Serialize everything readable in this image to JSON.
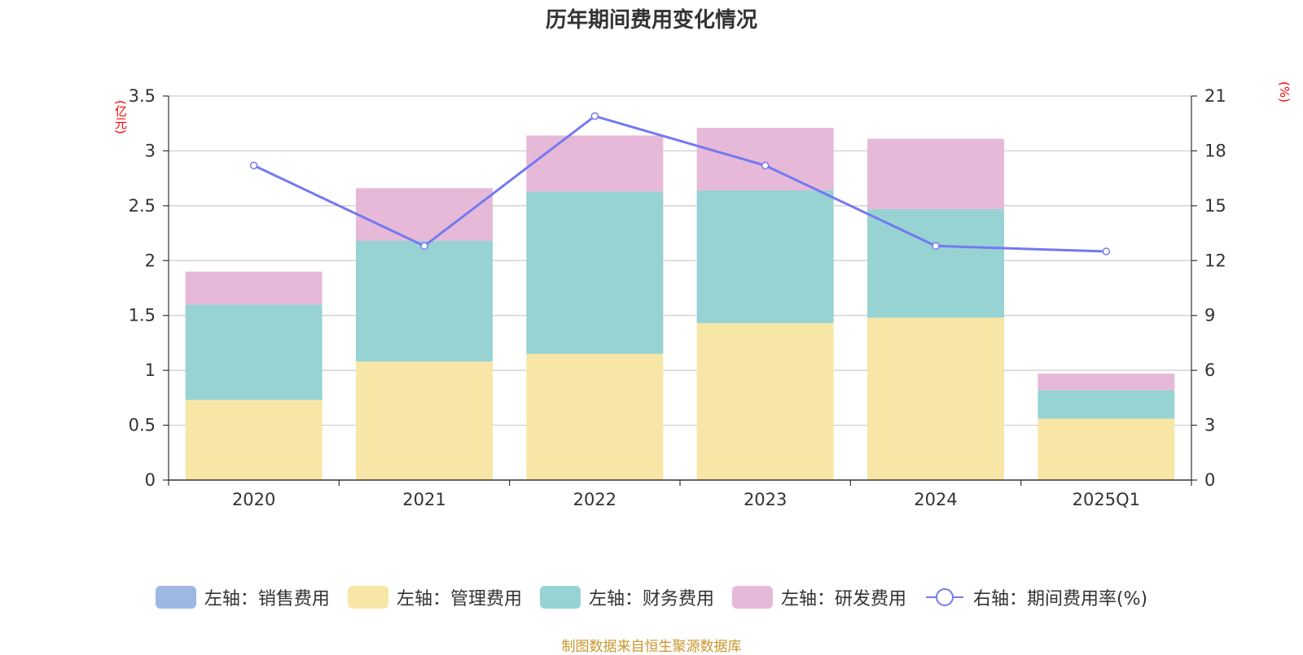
{
  "chart_data": {
    "type": "bar",
    "title": "历年期间费用变化情况",
    "categories": [
      "2020",
      "2021",
      "2022",
      "2023",
      "2024",
      "2025Q1"
    ],
    "series": [
      {
        "name": "左轴：销售费用",
        "axis": "left",
        "type": "bar",
        "color": "#9db8e2",
        "values": [
          0,
          0,
          0,
          0,
          0,
          0
        ]
      },
      {
        "name": "左轴：管理费用",
        "axis": "left",
        "type": "bar",
        "color": "#f7e6a6",
        "values": [
          0.73,
          1.08,
          1.15,
          1.43,
          1.48,
          0.56
        ]
      },
      {
        "name": "左轴：财务费用",
        "axis": "left",
        "type": "bar",
        "color": "#98d3d4",
        "values": [
          0.87,
          1.1,
          1.48,
          1.21,
          0.99,
          0.26
        ]
      },
      {
        "name": "左轴：研发费用",
        "axis": "left",
        "type": "bar",
        "color": "#e7b9d9",
        "values": [
          0.3,
          0.48,
          0.51,
          0.57,
          0.64,
          0.15
        ]
      },
      {
        "name": "右轴：期间费用率(%)",
        "axis": "right",
        "type": "line",
        "color": "#7479f0",
        "values": [
          17.2,
          12.8,
          19.9,
          17.2,
          12.8,
          12.5
        ]
      }
    ],
    "left_axis": {
      "unit": "(亿元)",
      "ylim": [
        0,
        3.5
      ],
      "ticks": [
        "0",
        "0.5",
        "1",
        "1.5",
        "2",
        "2.5",
        "3",
        "3.5"
      ]
    },
    "right_axis": {
      "unit": "(%)",
      "ylim": [
        0,
        21
      ],
      "ticks": [
        "0",
        "3",
        "6",
        "9",
        "12",
        "15",
        "18",
        "21"
      ]
    },
    "grid": true,
    "legend_position": "bottom"
  },
  "source": "制图数据来自恒生聚源数据库"
}
